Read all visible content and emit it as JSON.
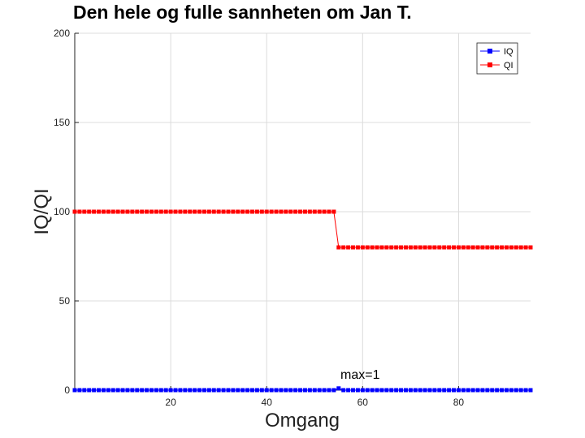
{
  "chart_data": {
    "type": "line",
    "title": "Den hele og fulle sannheten om Jan T.",
    "xlabel": "Omgang",
    "ylabel": "IQ/QI",
    "xlim": [
      0,
      95
    ],
    "ylim": [
      0,
      200
    ],
    "xticks": [
      20,
      40,
      60,
      80
    ],
    "yticks": [
      0,
      50,
      100,
      150,
      200
    ],
    "grid": true,
    "legend_position": "top-right",
    "annotation": {
      "text": "max=1",
      "x": 55,
      "y": 1
    },
    "series": [
      {
        "name": "IQ",
        "color": "#0000ff",
        "marker": "square",
        "segments": [
          {
            "x_start": 0,
            "x_end": 54,
            "y": 0
          },
          {
            "x_start": 55,
            "x_end": 55,
            "y": 1
          },
          {
            "x_start": 56,
            "x_end": 95,
            "y": 0
          }
        ]
      },
      {
        "name": "QI",
        "color": "#ff0000",
        "marker": "square",
        "segments": [
          {
            "x_start": 0,
            "x_end": 54,
            "y": 100
          },
          {
            "x_start": 55,
            "x_end": 95,
            "y": 80
          }
        ]
      }
    ]
  }
}
